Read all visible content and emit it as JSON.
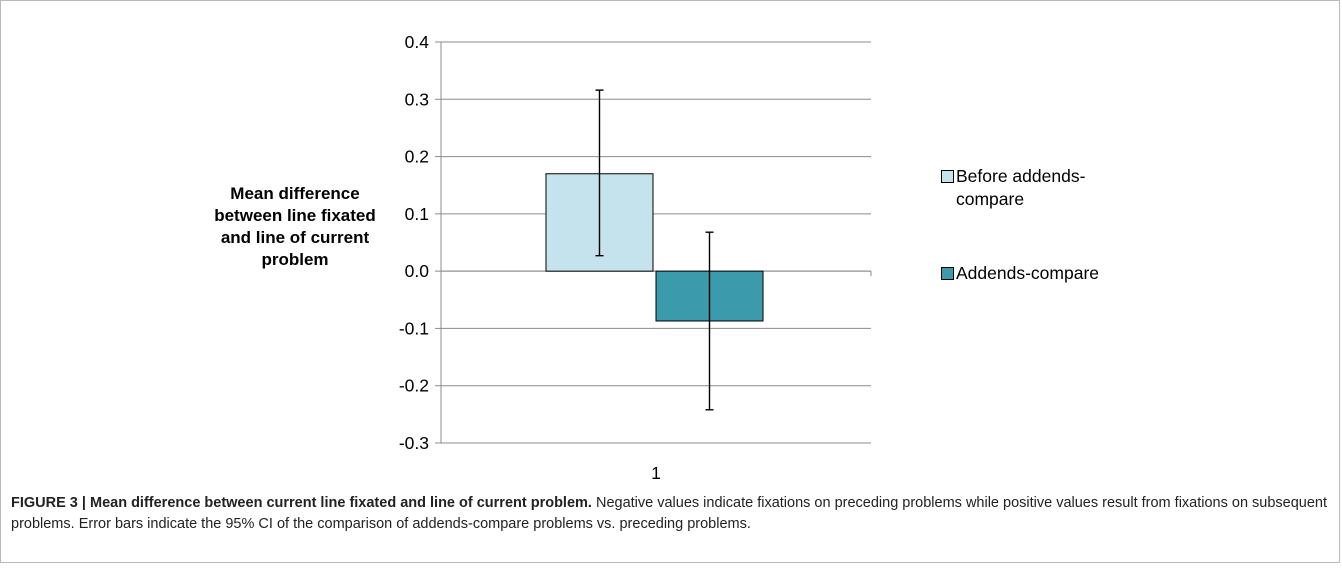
{
  "chart_data": {
    "type": "bar",
    "categories": [
      "1"
    ],
    "ylabel": "Mean difference between line fixated and line of current problem",
    "ylim": [
      -0.3,
      0.4
    ],
    "yticks": [
      "0.4",
      "0.3",
      "0.2",
      "0.1",
      "0.0",
      "-0.1",
      "-0.2",
      "-0.3"
    ],
    "grid": true,
    "legend_position": "right",
    "series": [
      {
        "name": "Before addends-compare",
        "name_lines": [
          "Before addends-",
          "compare"
        ],
        "values": [
          0.17
        ],
        "error_low": [
          0.027
        ],
        "error_high": [
          0.316
        ],
        "color": "#c4e3ec"
      },
      {
        "name": "Addends-compare",
        "name_lines": [
          "Addends-compare"
        ],
        "values": [
          -0.087
        ],
        "error_low": [
          -0.242
        ],
        "error_high": [
          0.068
        ],
        "color": "#3b9aab"
      }
    ]
  },
  "caption": {
    "title": "FIGURE 3 | Mean difference between current line fixated and line of current problem.",
    "body": "Negative values indicate fixations on preceding problems while positive values result from fixations on subsequent problems. Error bars indicate the 95% CI of the comparison of addends-compare problems vs. preceding problems."
  }
}
